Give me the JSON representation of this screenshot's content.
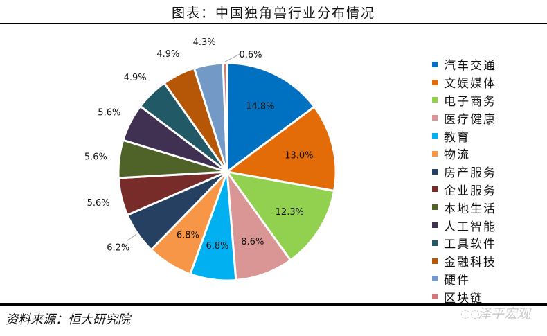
{
  "title": "图表：中国独角兽行业分布情况",
  "source": "资料来源：恒大研究院",
  "watermark": "泽平宏观",
  "chart_data": {
    "type": "pie",
    "categories": [
      "汽车交通",
      "文娱媒体",
      "电子商务",
      "医疗健康",
      "教育",
      "物流",
      "房产服务",
      "企业服务",
      "本地生活",
      "人工智能",
      "工具软件",
      "金融科技",
      "硬件",
      "区块链"
    ],
    "values": [
      14.8,
      13.0,
      12.3,
      8.6,
      6.8,
      6.8,
      6.2,
      5.6,
      5.6,
      5.6,
      4.9,
      4.9,
      4.3,
      0.6
    ],
    "labels": [
      "14.8%",
      "13.0%",
      "12.3%",
      "8.6%",
      "6.8%",
      "6.8%",
      "6.2%",
      "5.6%",
      "5.6%",
      "5.6%",
      "4.9%",
      "4.9%",
      "4.3%",
      "0.6%"
    ],
    "colors": [
      "#0070C0",
      "#E36C09",
      "#92D050",
      "#D99694",
      "#00B0F0",
      "#F79646",
      "#254061",
      "#772C2A",
      "#4F6228",
      "#403152",
      "#215967",
      "#B65708",
      "#7399C6",
      "#D2787A"
    ],
    "start": "top",
    "direction": "clockwise",
    "legend": "right"
  }
}
